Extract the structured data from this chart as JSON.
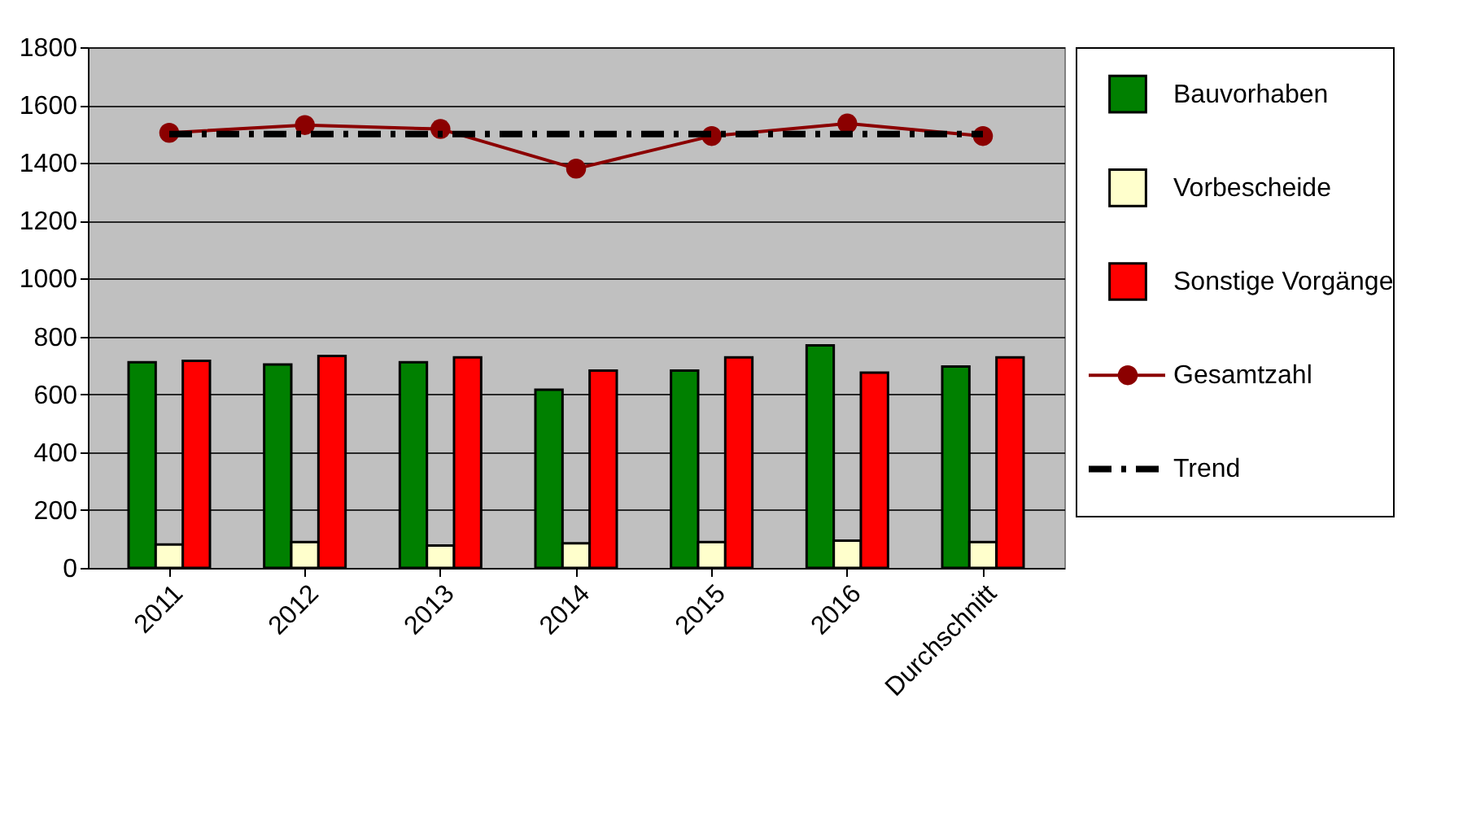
{
  "chart_data": {
    "type": "bar",
    "categories": [
      "2011",
      "2012",
      "2013",
      "2014",
      "2015",
      "2016",
      "Durchschnitt"
    ],
    "series": [
      {
        "name": "Bauvorhaben",
        "color": "#008000",
        "values": [
          711,
          703,
          711,
          616,
          682,
          769,
          696
        ]
      },
      {
        "name": "Vorbescheide",
        "color": "#ffffcc",
        "values": [
          81,
          89,
          77,
          85,
          89,
          94,
          89
        ]
      },
      {
        "name": "Sonstige Vorgänge",
        "color": "#ff0000",
        "values": [
          716,
          733,
          728,
          682,
          728,
          675,
          728
        ]
      },
      {
        "name": "Gesamtzahl",
        "type": "line",
        "color": "#8b0000",
        "marker": "circle",
        "line_style": "solid",
        "values": [
          1504,
          1531,
          1517,
          1380,
          1493,
          1536,
          1493
        ]
      },
      {
        "name": "Trend",
        "type": "line",
        "color": "#000000",
        "marker": "none",
        "line_style": "dashed",
        "values": [
          1500,
          1500,
          1500,
          1500,
          1500,
          1500,
          1500
        ]
      }
    ],
    "ylim": [
      0,
      1800
    ],
    "yticks": [
      0,
      200,
      400,
      600,
      800,
      1000,
      1200,
      1400,
      1600,
      1800
    ],
    "grid": "y",
    "legend": "right"
  }
}
